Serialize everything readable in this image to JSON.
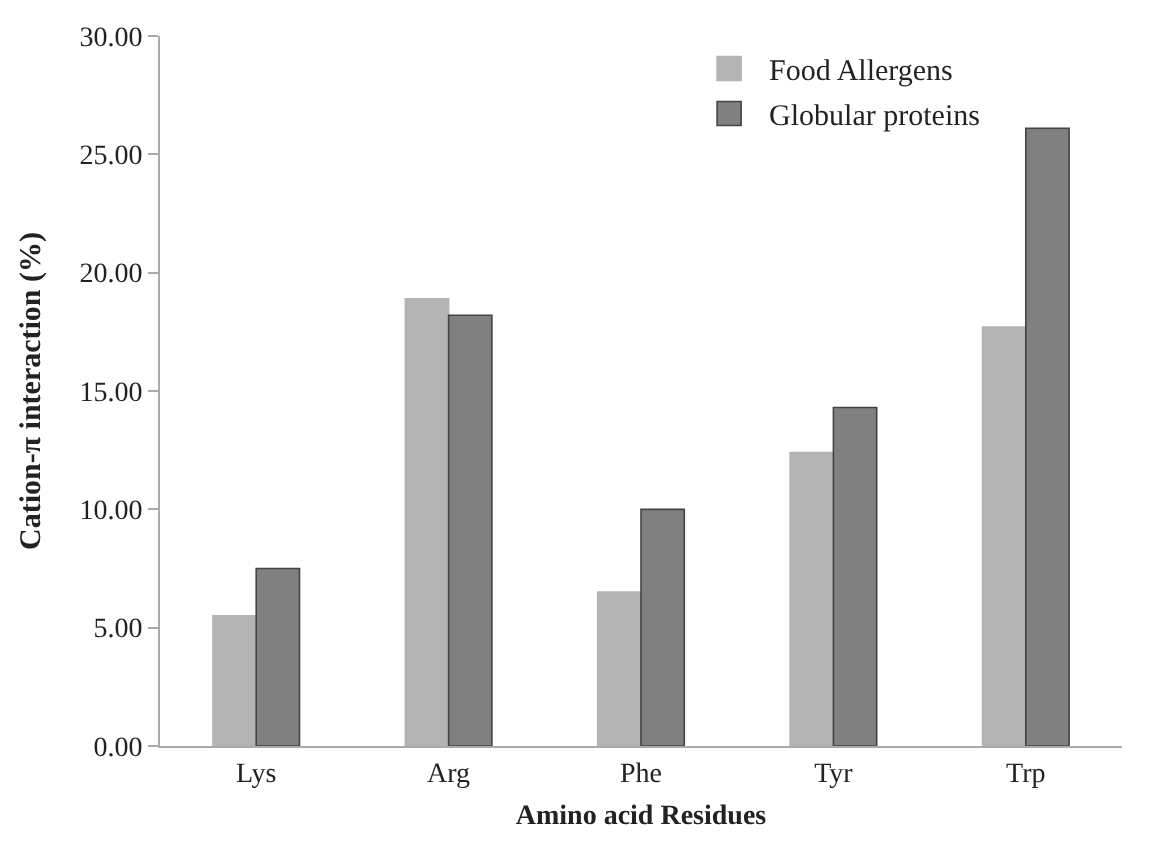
{
  "chart_data": {
    "type": "bar",
    "xlabel": "Amino acid Residues",
    "ylabel": "Cation-π interaction (%)",
    "categories": [
      "Lys",
      "Arg",
      "Phe",
      "Tyr",
      "Trp"
    ],
    "series": [
      {
        "name": "Food Allergens",
        "color": "#b4b4b4",
        "values": [
          5.5,
          18.9,
          6.5,
          12.4,
          17.7
        ]
      },
      {
        "name": "Globular proteins",
        "color": "#808080",
        "values": [
          7.5,
          18.2,
          10.0,
          14.3,
          26.1
        ]
      }
    ],
    "ylim": [
      0,
      30
    ],
    "yticks": [
      {
        "value": 0,
        "label": "0.00"
      },
      {
        "value": 5,
        "label": "5.00"
      },
      {
        "value": 10,
        "label": "10.00"
      },
      {
        "value": 15,
        "label": "15.00"
      },
      {
        "value": 20,
        "label": "20.00"
      },
      {
        "value": 25,
        "label": "25.00"
      },
      {
        "value": 30,
        "label": "30.00"
      }
    ],
    "grid": false,
    "legend": "top right"
  }
}
